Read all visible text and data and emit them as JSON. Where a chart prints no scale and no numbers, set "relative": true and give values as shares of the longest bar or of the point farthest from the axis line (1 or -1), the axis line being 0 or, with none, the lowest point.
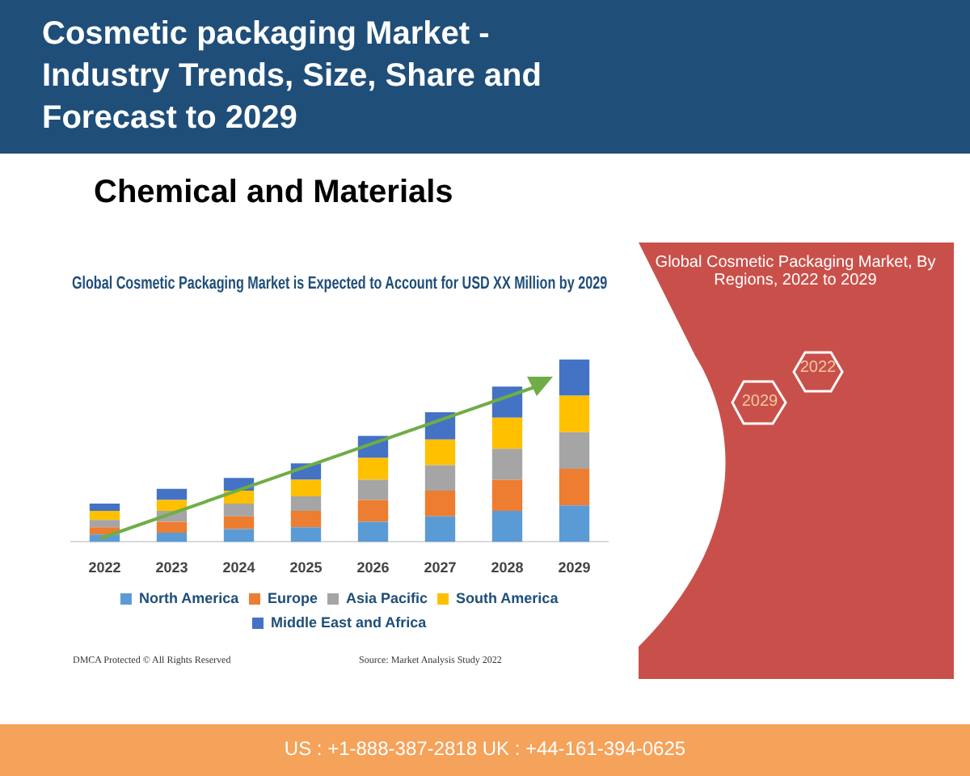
{
  "chart_data": {
    "type": "bar",
    "title": "Global Cosmetic Packaging Market is Expected to Account for USD XX Million by 2029",
    "subtitle": "Chemical and Materials",
    "annotations": [
      "Cosmetic packaging Market - Industry Trends, Size, Share and Forecast to 2029",
      "Global Cosmetic Packaging Market, By Regions, 2022 to 2029",
      "2022",
      "2029",
      "DMCA Protected © All Rights Reserved",
      "Source: Market Analysis Study 2022",
      "US : +1-888-387-2818  UK : +44-161-394-0625"
    ],
    "categories": [
      "2022",
      "2023",
      "2024",
      "2025",
      "2026",
      "2027",
      "2028",
      "2029"
    ],
    "stacked": true,
    "relative": true,
    "grid": false,
    "legend": "bottom",
    "series": [
      {
        "name": "North America",
        "color": "#5b9bd5",
        "values": [
          0.04,
          0.05,
          0.07,
          0.08,
          0.11,
          0.14,
          0.17,
          0.2
        ]
      },
      {
        "name": "Europe",
        "color": "#ed7d31",
        "values": [
          0.04,
          0.06,
          0.07,
          0.09,
          0.12,
          0.14,
          0.17,
          0.2
        ]
      },
      {
        "name": "Asia Pacific",
        "color": "#a5a5a5",
        "values": [
          0.04,
          0.06,
          0.07,
          0.08,
          0.11,
          0.14,
          0.17,
          0.2
        ]
      },
      {
        "name": "South America",
        "color": "#ffc000",
        "values": [
          0.05,
          0.06,
          0.07,
          0.09,
          0.12,
          0.14,
          0.17,
          0.2
        ]
      },
      {
        "name": "Middle East and Africa",
        "color": "#4472c4",
        "values": [
          0.04,
          0.06,
          0.07,
          0.09,
          0.12,
          0.15,
          0.17,
          0.2
        ]
      }
    ]
  }
}
